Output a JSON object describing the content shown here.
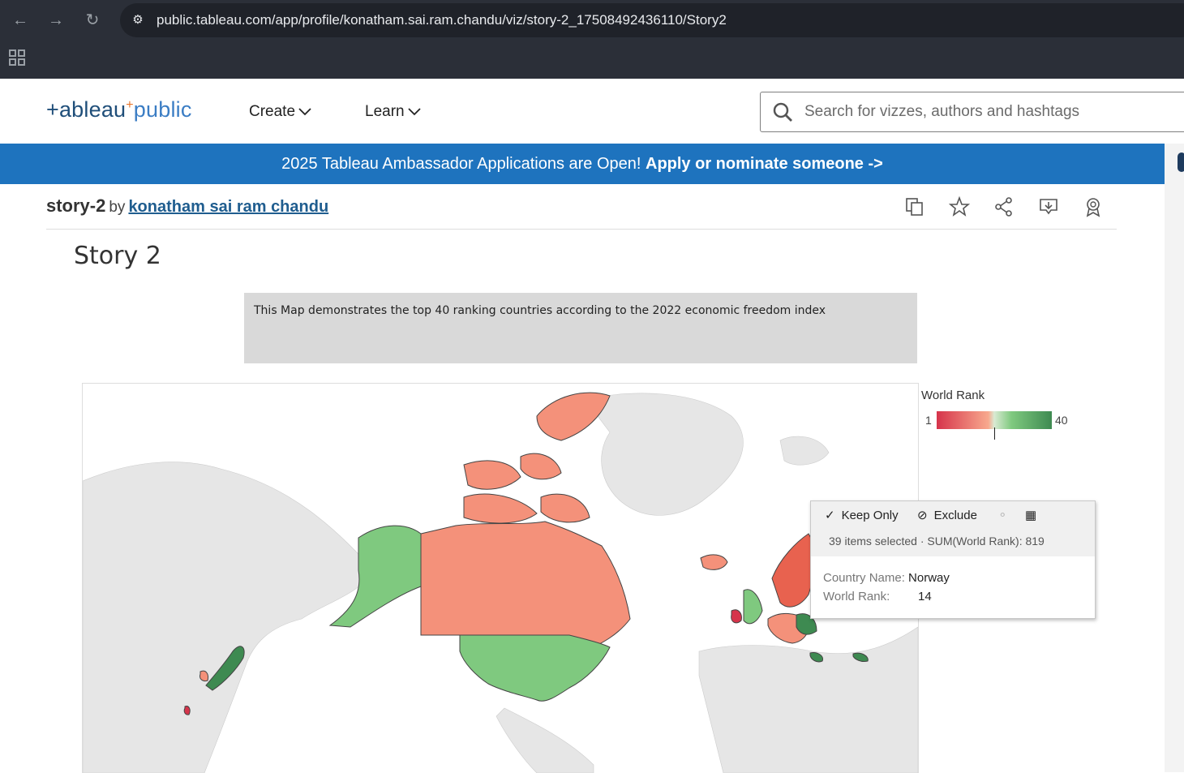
{
  "browser": {
    "url": "public.tableau.com/app/profile/konatham.sai.ram.chandu/viz/story-2_17508492436110/Story2"
  },
  "site": {
    "logo_main": "+ableau",
    "logo_plus": "+",
    "logo_public": "public",
    "menu": [
      {
        "label": "Create"
      },
      {
        "label": "Learn"
      }
    ],
    "search_placeholder": "Search for vizzes, authors and hashtags"
  },
  "banner": {
    "text": "2025 Tableau Ambassador Applications are Open! ",
    "cta": "Apply or nominate someone ->"
  },
  "viz": {
    "title": "story-2",
    "by": "by",
    "author": "konatham sai ram chandu",
    "toolbar": [
      "copy-icon",
      "favorite-icon",
      "share-icon",
      "download-icon",
      "badge-icon"
    ]
  },
  "story": {
    "title": "Story 2",
    "caption": "This Map demonstrates the top 40 ranking countries according to the 2022 economic freedom index"
  },
  "legend": {
    "title": "World Rank",
    "min": "1",
    "max": "40",
    "colors": [
      "#d6344b",
      "#f8a98e",
      "#7fc97f",
      "#3e8a51"
    ]
  },
  "tooltip": {
    "keep_only": "Keep Only",
    "exclude": "Exclude",
    "summary": "39 items selected · SUM(World Rank): 819",
    "country_label": "Country Name:",
    "country_value": "Norway",
    "rank_label": "World Rank:",
    "rank_value": "14"
  },
  "colors": {
    "banner": "#1e73be",
    "low_rank": "#d6344b",
    "mid_low": "#f4917a",
    "mid_high": "#7fc97f",
    "high_rank": "#3e8a51",
    "land_gray": "#e6e6e6"
  }
}
